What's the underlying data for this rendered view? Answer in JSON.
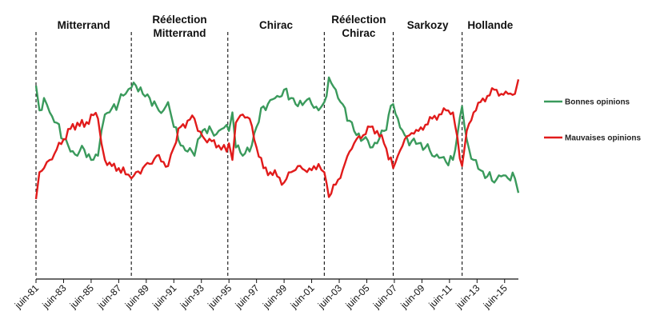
{
  "chart_data": {
    "type": "line",
    "title": "",
    "xlabel": "",
    "ylabel": "",
    "x_range": [
      "1981-06",
      "2016-06"
    ],
    "y_range": [
      0,
      100
    ],
    "y_axis_shown": false,
    "grid": false,
    "legend_position": "right",
    "tick_labels": [
      "juin-81",
      "juin-83",
      "juin-85",
      "juin-87",
      "juin-89",
      "juin-91",
      "juin-93",
      "juin-95",
      "juin-97",
      "juin-99",
      "juin-01",
      "juin-03",
      "juin-05",
      "juin-07",
      "juin-09",
      "juin-11",
      "juin-13",
      "juin-15"
    ],
    "periods": [
      {
        "label_lines": [
          "Mitterrand"
        ],
        "start": "1981-06",
        "end": "1988-05"
      },
      {
        "label_lines": [
          "Réélection",
          "Mitterrand"
        ],
        "start": "1988-05",
        "end": "1995-05"
      },
      {
        "label_lines": [
          "Chirac"
        ],
        "start": "1995-05",
        "end": "2002-05"
      },
      {
        "label_lines": [
          "Réélection",
          "Chirac"
        ],
        "start": "2002-05",
        "end": "2007-05"
      },
      {
        "label_lines": [
          "Sarkozy"
        ],
        "start": "2007-05",
        "end": "2012-05"
      },
      {
        "label_lines": [
          "Hollande"
        ],
        "start": "2012-05",
        "end": "2016-06"
      }
    ],
    "series": [
      {
        "name": "Bonnes opinions",
        "color": "#3a9a5c",
        "points": [
          [
            "1981-06",
            74
          ],
          [
            "1981-09",
            62
          ],
          [
            "1982-01",
            68
          ],
          [
            "1982-06",
            61
          ],
          [
            "1982-12",
            56
          ],
          [
            "1983-06",
            48
          ],
          [
            "1983-12",
            42
          ],
          [
            "1984-06",
            40
          ],
          [
            "1984-12",
            43
          ],
          [
            "1985-06",
            38
          ],
          [
            "1985-12",
            40
          ],
          [
            "1986-03",
            52
          ],
          [
            "1986-06",
            60
          ],
          [
            "1986-12",
            63
          ],
          [
            "1987-06",
            66
          ],
          [
            "1987-12",
            70
          ],
          [
            "1988-05",
            73
          ],
          [
            "1988-09",
            74
          ],
          [
            "1989-03",
            70
          ],
          [
            "1989-09",
            68
          ],
          [
            "1990-03",
            64
          ],
          [
            "1990-09",
            62
          ],
          [
            "1991-01",
            66
          ],
          [
            "1991-06",
            54
          ],
          [
            "1991-12",
            45
          ],
          [
            "1992-06",
            42
          ],
          [
            "1992-12",
            40
          ],
          [
            "1993-03",
            48
          ],
          [
            "1993-09",
            53
          ],
          [
            "1994-03",
            52
          ],
          [
            "1994-09",
            52
          ],
          [
            "1995-04",
            55
          ],
          [
            "1995-06",
            52
          ],
          [
            "1995-09",
            61
          ],
          [
            "1995-12",
            44
          ],
          [
            "1996-06",
            40
          ],
          [
            "1996-12",
            42
          ],
          [
            "1997-06",
            54
          ],
          [
            "1997-12",
            64
          ],
          [
            "1998-06",
            67
          ],
          [
            "1998-12",
            69
          ],
          [
            "1999-06",
            72
          ],
          [
            "1999-12",
            68
          ],
          [
            "2000-06",
            64
          ],
          [
            "2000-12",
            66
          ],
          [
            "2001-06",
            65
          ],
          [
            "2001-12",
            62
          ],
          [
            "2002-05",
            66
          ],
          [
            "2002-09",
            78
          ],
          [
            "2003-03",
            72
          ],
          [
            "2003-09",
            65
          ],
          [
            "2004-03",
            57
          ],
          [
            "2004-09",
            50
          ],
          [
            "2005-03",
            48
          ],
          [
            "2005-09",
            44
          ],
          [
            "2006-03",
            46
          ],
          [
            "2006-09",
            52
          ],
          [
            "2007-05",
            65
          ],
          [
            "2007-09",
            58
          ],
          [
            "2008-03",
            50
          ],
          [
            "2008-09",
            47
          ],
          [
            "2009-03",
            46
          ],
          [
            "2009-09",
            44
          ],
          [
            "2010-03",
            40
          ],
          [
            "2010-09",
            39
          ],
          [
            "2011-03",
            37
          ],
          [
            "2011-09",
            38
          ],
          [
            "2012-05",
            64
          ],
          [
            "2012-09",
            48
          ],
          [
            "2013-03",
            38
          ],
          [
            "2013-09",
            33
          ],
          [
            "2014-03",
            30
          ],
          [
            "2014-09",
            27
          ],
          [
            "2015-03",
            30
          ],
          [
            "2015-09",
            29
          ],
          [
            "2016-03",
            29
          ],
          [
            "2016-06",
            22
          ]
        ]
      },
      {
        "name": "Mauvaises opinions",
        "color": "#e11b1b",
        "points": [
          [
            "1981-06",
            19
          ],
          [
            "1981-09",
            32
          ],
          [
            "1982-01",
            34
          ],
          [
            "1982-06",
            38
          ],
          [
            "1982-12",
            43
          ],
          [
            "1983-06",
            48
          ],
          [
            "1983-12",
            53
          ],
          [
            "1984-06",
            56
          ],
          [
            "1984-12",
            54
          ],
          [
            "1985-06",
            60
          ],
          [
            "1985-12",
            58
          ],
          [
            "1986-03",
            46
          ],
          [
            "1986-06",
            38
          ],
          [
            "1986-12",
            35
          ],
          [
            "1987-06",
            34
          ],
          [
            "1987-12",
            31
          ],
          [
            "1988-05",
            29
          ],
          [
            "1988-09",
            32
          ],
          [
            "1989-03",
            34
          ],
          [
            "1989-09",
            36
          ],
          [
            "1990-03",
            40
          ],
          [
            "1990-09",
            37
          ],
          [
            "1991-01",
            35
          ],
          [
            "1991-06",
            44
          ],
          [
            "1991-12",
            54
          ],
          [
            "1992-06",
            57
          ],
          [
            "1992-12",
            58
          ],
          [
            "1993-03",
            52
          ],
          [
            "1993-09",
            48
          ],
          [
            "1994-03",
            47
          ],
          [
            "1994-09",
            45
          ],
          [
            "1995-04",
            42
          ],
          [
            "1995-06",
            46
          ],
          [
            "1995-09",
            38
          ],
          [
            "1995-12",
            56
          ],
          [
            "1996-06",
            60
          ],
          [
            "1996-12",
            58
          ],
          [
            "1997-06",
            44
          ],
          [
            "1997-12",
            34
          ],
          [
            "1998-06",
            32
          ],
          [
            "1998-12",
            30
          ],
          [
            "1999-06",
            27
          ],
          [
            "1999-12",
            32
          ],
          [
            "2000-06",
            35
          ],
          [
            "2000-12",
            33
          ],
          [
            "2001-06",
            33
          ],
          [
            "2001-12",
            36
          ],
          [
            "2002-05",
            32
          ],
          [
            "2002-09",
            20
          ],
          [
            "2003-03",
            26
          ],
          [
            "2003-09",
            33
          ],
          [
            "2004-03",
            42
          ],
          [
            "2004-09",
            48
          ],
          [
            "2005-03",
            50
          ],
          [
            "2005-09",
            54
          ],
          [
            "2006-03",
            52
          ],
          [
            "2006-09",
            46
          ],
          [
            "2007-05",
            34
          ],
          [
            "2007-09",
            40
          ],
          [
            "2008-03",
            48
          ],
          [
            "2008-09",
            51
          ],
          [
            "2009-03",
            52
          ],
          [
            "2009-09",
            55
          ],
          [
            "2010-03",
            58
          ],
          [
            "2010-09",
            60
          ],
          [
            "2011-03",
            62
          ],
          [
            "2011-09",
            61
          ],
          [
            "2012-05",
            35
          ],
          [
            "2012-09",
            52
          ],
          [
            "2013-03",
            61
          ],
          [
            "2013-09",
            66
          ],
          [
            "2014-03",
            69
          ],
          [
            "2014-09",
            72
          ],
          [
            "2015-03",
            70
          ],
          [
            "2015-09",
            70
          ],
          [
            "2016-03",
            70
          ],
          [
            "2016-06",
            77
          ]
        ]
      }
    ]
  }
}
